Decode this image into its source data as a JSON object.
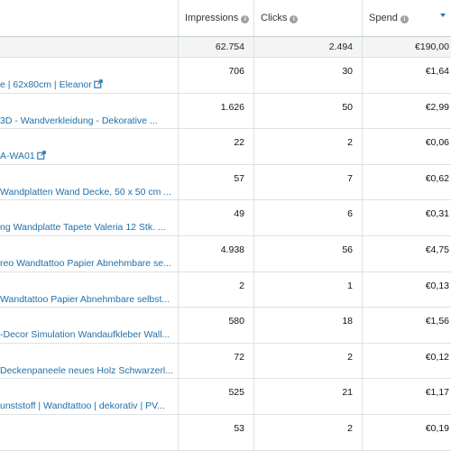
{
  "columns": {
    "impressions": "Impressions",
    "clicks": "Clicks",
    "spend": "Spend"
  },
  "totals": {
    "impressions": "62.754",
    "clicks": "2.494",
    "spend": "€190,00"
  },
  "rows": [
    {
      "name": "e | 62x80cm | Eleanor",
      "external": true,
      "impressions": "706",
      "clicks": "30",
      "spend": "€1,64"
    },
    {
      "name": "3D - Wandverkleidung - Dekorative ...",
      "external": false,
      "impressions": "1.626",
      "clicks": "50",
      "spend": "€2,99"
    },
    {
      "name": "A-WA01",
      "external": true,
      "impressions": "22",
      "clicks": "2",
      "spend": "€0,06"
    },
    {
      "name": "Wandplatten Wand Decke, 50 x 50 cm ...",
      "external": false,
      "impressions": "57",
      "clicks": "7",
      "spend": "€0,62"
    },
    {
      "name": "ng Wandplatte Tapete Valeria 12 Stk. ...",
      "external": false,
      "impressions": "49",
      "clicks": "6",
      "spend": "€0,31"
    },
    {
      "name": "reo Wandtattoo Papier Abnehmbare se...",
      "external": false,
      "impressions": "4.938",
      "clicks": "56",
      "spend": "€4,75"
    },
    {
      "name": "Wandtattoo Papier Abnehmbare selbst...",
      "external": false,
      "impressions": "2",
      "clicks": "1",
      "spend": "€0,13"
    },
    {
      "name": "-Decor Simulation Wandaufkleber Wall...",
      "external": false,
      "impressions": "580",
      "clicks": "18",
      "spend": "€1,56"
    },
    {
      "name": "Deckenpaneele neues Holz Schwarzerl...",
      "external": false,
      "impressions": "72",
      "clicks": "2",
      "spend": "€0,12"
    },
    {
      "name": "unststoff | Wandtattoo | dekorativ | PV...",
      "external": false,
      "impressions": "525",
      "clicks": "21",
      "spend": "€1,17"
    },
    {
      "name": "",
      "external": false,
      "impressions": "53",
      "clicks": "2",
      "spend": "€0,19"
    }
  ],
  "colors": {
    "link": "#1f6fa8",
    "border": "#dde1e3",
    "totals_bg": "#f3f4f4",
    "sort_caret": "#1f7db0"
  }
}
